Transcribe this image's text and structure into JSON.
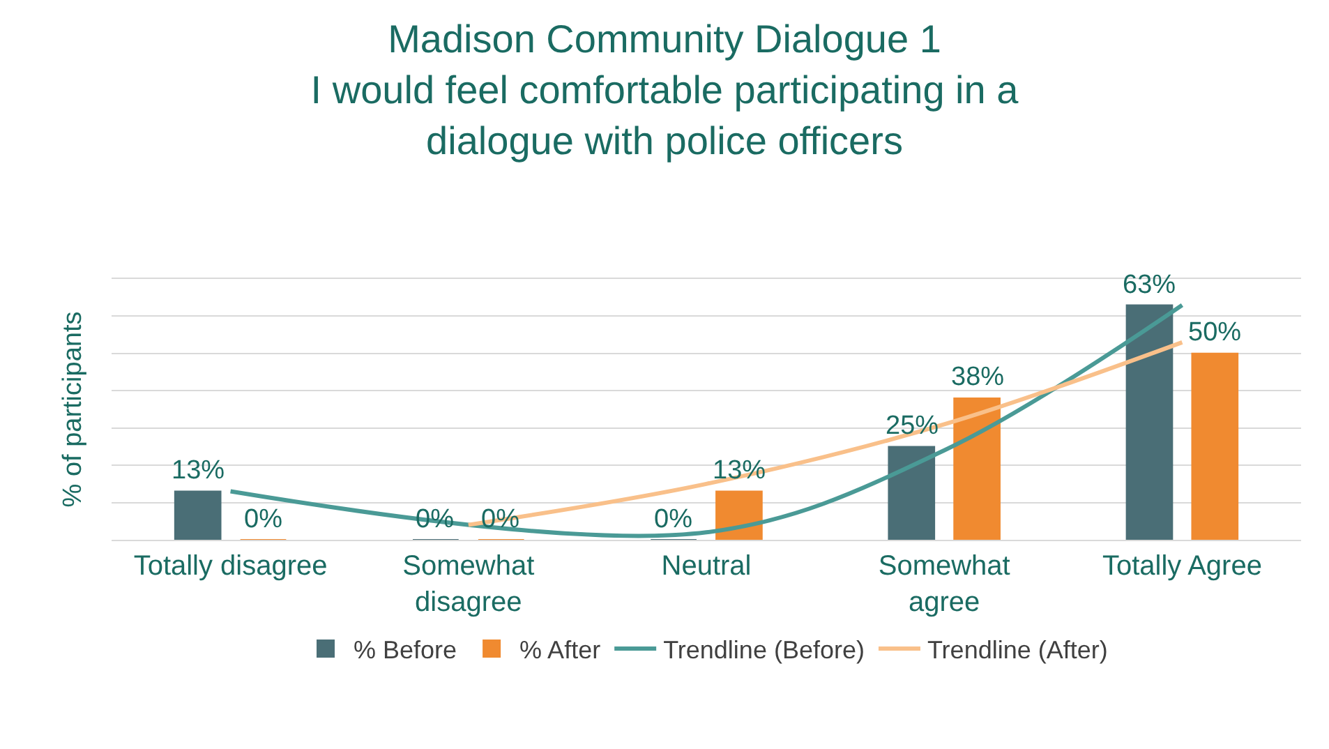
{
  "chart_data": {
    "type": "bar",
    "title": "Madison Community Dialogue 1\nI would feel comfortable participating in a\ndialogue with police officers",
    "ylabel": "% of participants",
    "categories": [
      "Totally disagree",
      "Somewhat disagree",
      "Neutral",
      "Somewhat agree",
      "Totally Agree"
    ],
    "series": [
      {
        "name": "% Before",
        "color": "#4a6e76",
        "values": [
          13,
          0,
          0,
          25,
          63
        ],
        "value_labels": [
          "13%",
          "0%",
          "0%",
          "25%",
          "63%"
        ]
      },
      {
        "name": "% After",
        "color": "#f08a30",
        "values": [
          0,
          0,
          13,
          38,
          50
        ],
        "value_labels": [
          "0%",
          "0%",
          "13%",
          "38%",
          "50%"
        ]
      },
      {
        "name": "Trendline (Before)",
        "type": "line",
        "color": "#4a9a96",
        "values": [
          13,
          null,
          2,
          24,
          63
        ]
      },
      {
        "name": "Trendline (After)",
        "type": "line",
        "color": "#f9c08a",
        "values": [
          null,
          4,
          15,
          31,
          53
        ]
      }
    ],
    "ylim": [
      0,
      70
    ],
    "yticks": [
      {
        "value": 0,
        "label": null
      },
      {
        "value": 10,
        "label": null
      },
      {
        "value": 20,
        "label": null
      },
      {
        "value": 30,
        "label": null
      },
      {
        "value": 40,
        "label": null
      },
      {
        "value": 50,
        "label": null
      },
      {
        "value": 60,
        "label": null
      },
      {
        "value": 70,
        "label": null
      }
    ],
    "grid": "y",
    "tick_labels": "x",
    "legend": "bottom"
  }
}
